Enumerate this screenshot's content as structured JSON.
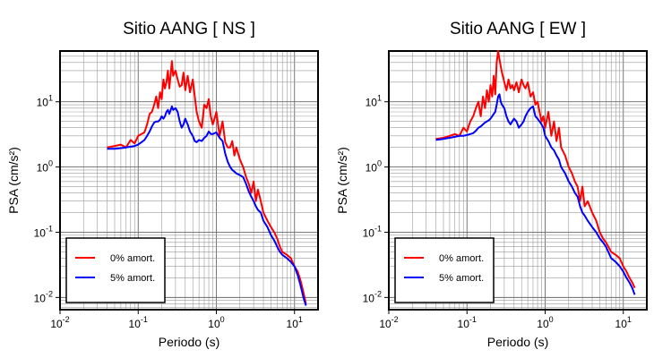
{
  "chart_data": [
    {
      "type": "line",
      "title": "Sitio AANG [ NS ]",
      "xlabel": "Periodo (s)",
      "ylabel": "PSA (cm/s²)",
      "xscale": "log",
      "yscale": "log",
      "xlim": [
        0.01,
        20
      ],
      "ylim": [
        0.0065,
        60
      ],
      "xticks": [
        0.01,
        0.1,
        1,
        10
      ],
      "yticks": [
        0.01,
        0.1,
        1,
        10
      ],
      "grid": true,
      "legend_position": "bottom-left",
      "series": [
        {
          "name": "0% amort.",
          "color": "#ff0000",
          "x": [
            0.04,
            0.05,
            0.06,
            0.07,
            0.08,
            0.09,
            0.1,
            0.11,
            0.12,
            0.13,
            0.14,
            0.15,
            0.16,
            0.17,
            0.18,
            0.19,
            0.2,
            0.21,
            0.22,
            0.23,
            0.24,
            0.25,
            0.27,
            0.28,
            0.3,
            0.32,
            0.34,
            0.36,
            0.38,
            0.4,
            0.43,
            0.46,
            0.5,
            0.53,
            0.56,
            0.6,
            0.65,
            0.7,
            0.75,
            0.8,
            0.85,
            0.9,
            0.95,
            1.0,
            1.1,
            1.2,
            1.3,
            1.4,
            1.5,
            1.6,
            1.7,
            1.8,
            2.0,
            2.2,
            2.4,
            2.6,
            2.8,
            3.0,
            3.2,
            3.4,
            3.7,
            4.0,
            4.5,
            5.0,
            5.5,
            6.0,
            6.5,
            7.0,
            8.0,
            9.0,
            10.0,
            11.0,
            12.0,
            13.0,
            14.0
          ],
          "y": [
            2.0,
            2.1,
            2.2,
            2.0,
            2.6,
            2.3,
            3.0,
            3.2,
            3.4,
            4.5,
            6.5,
            7.0,
            9.0,
            12.0,
            8.0,
            14.0,
            11.0,
            22.0,
            16.0,
            20.0,
            30.0,
            16.0,
            42.0,
            25.0,
            30.0,
            22.0,
            17.0,
            18.0,
            28.0,
            15.0,
            25.0,
            14.0,
            22.0,
            12.0,
            7.0,
            5.0,
            4.0,
            9.0,
            8.0,
            11.0,
            6.0,
            4.5,
            5.5,
            7.0,
            3.0,
            5.0,
            2.4,
            2.0,
            2.0,
            2.5,
            1.5,
            2.0,
            1.3,
            1.0,
            0.7,
            0.55,
            0.4,
            0.6,
            0.3,
            0.45,
            0.3,
            0.2,
            0.15,
            0.12,
            0.1,
            0.08,
            0.06,
            0.05,
            0.045,
            0.04,
            0.03,
            0.025,
            0.018,
            0.012,
            0.008
          ]
        },
        {
          "name": "5% amort.",
          "color": "#0000ff",
          "x": [
            0.04,
            0.05,
            0.06,
            0.07,
            0.08,
            0.09,
            0.1,
            0.11,
            0.12,
            0.13,
            0.14,
            0.15,
            0.16,
            0.17,
            0.18,
            0.19,
            0.2,
            0.21,
            0.22,
            0.23,
            0.24,
            0.25,
            0.27,
            0.28,
            0.3,
            0.32,
            0.34,
            0.36,
            0.38,
            0.4,
            0.43,
            0.46,
            0.5,
            0.53,
            0.56,
            0.6,
            0.65,
            0.7,
            0.75,
            0.8,
            0.85,
            0.9,
            0.95,
            1.0,
            1.1,
            1.2,
            1.3,
            1.4,
            1.5,
            1.6,
            1.7,
            1.8,
            2.0,
            2.2,
            2.4,
            2.6,
            2.8,
            3.0,
            3.2,
            3.4,
            3.7,
            4.0,
            4.5,
            5.0,
            5.5,
            6.0,
            6.5,
            7.0,
            8.0,
            9.0,
            10.0,
            11.0,
            12.0,
            13.0,
            14.0
          ],
          "y": [
            1.9,
            1.9,
            1.95,
            2.0,
            2.05,
            2.1,
            2.2,
            2.4,
            2.6,
            3.0,
            3.5,
            4.2,
            4.8,
            5.0,
            5.0,
            5.3,
            6.0,
            5.5,
            6.0,
            7.0,
            7.5,
            6.5,
            8.5,
            7.5,
            8.0,
            7.0,
            5.0,
            4.0,
            4.5,
            5.5,
            4.5,
            3.5,
            3.0,
            2.5,
            2.4,
            2.6,
            2.5,
            2.8,
            3.0,
            3.5,
            3.2,
            3.2,
            3.3,
            3.4,
            2.8,
            2.5,
            1.6,
            1.2,
            1.0,
            0.9,
            0.85,
            0.8,
            0.75,
            0.7,
            0.55,
            0.42,
            0.35,
            0.3,
            0.25,
            0.22,
            0.2,
            0.15,
            0.12,
            0.09,
            0.075,
            0.06,
            0.05,
            0.045,
            0.04,
            0.035,
            0.03,
            0.022,
            0.015,
            0.01,
            0.0075
          ]
        }
      ]
    },
    {
      "type": "line",
      "title": "Sitio AANG [ EW ]",
      "xlabel": "Periodo (s)",
      "ylabel": "PSA (cm/s²)",
      "xscale": "log",
      "yscale": "log",
      "xlim": [
        0.01,
        20
      ],
      "ylim": [
        0.0065,
        60
      ],
      "xticks": [
        0.01,
        0.1,
        1,
        10
      ],
      "yticks": [
        0.01,
        0.1,
        1,
        10
      ],
      "grid": true,
      "legend_position": "bottom-left",
      "series": [
        {
          "name": "0% amort.",
          "color": "#ff0000",
          "x": [
            0.04,
            0.05,
            0.06,
            0.07,
            0.08,
            0.09,
            0.1,
            0.11,
            0.12,
            0.13,
            0.14,
            0.15,
            0.16,
            0.17,
            0.18,
            0.19,
            0.2,
            0.21,
            0.22,
            0.23,
            0.24,
            0.25,
            0.26,
            0.27,
            0.28,
            0.3,
            0.32,
            0.34,
            0.36,
            0.38,
            0.4,
            0.43,
            0.46,
            0.5,
            0.53,
            0.56,
            0.6,
            0.65,
            0.7,
            0.75,
            0.8,
            0.85,
            0.9,
            0.95,
            1.0,
            1.1,
            1.2,
            1.3,
            1.4,
            1.5,
            1.6,
            1.8,
            2.0,
            2.2,
            2.4,
            2.6,
            2.8,
            3.0,
            3.2,
            3.5,
            4.0,
            4.5,
            5.0,
            5.5,
            6.0,
            7.0,
            8.0,
            9.0,
            10.0,
            11.0,
            12.0,
            13.0,
            14.0
          ],
          "y": [
            2.7,
            2.8,
            3.0,
            3.2,
            3.0,
            4.0,
            3.5,
            5.0,
            6.0,
            8.0,
            10.0,
            6.0,
            12.0,
            8.0,
            15.0,
            10.0,
            18.0,
            12.0,
            25.0,
            13.0,
            40.0,
            60.0,
            45.0,
            35.0,
            28.0,
            20.0,
            15.0,
            22.0,
            16.0,
            18.0,
            15.0,
            20.0,
            14.0,
            22.0,
            18.0,
            16.0,
            20.0,
            12.0,
            14.0,
            9.0,
            10.0,
            7.0,
            5.0,
            6.0,
            4.0,
            7.0,
            3.0,
            5.0,
            2.5,
            4.0,
            2.0,
            1.5,
            1.0,
            0.8,
            0.6,
            0.5,
            0.3,
            0.5,
            0.25,
            0.3,
            0.2,
            0.15,
            0.1,
            0.08,
            0.07,
            0.05,
            0.045,
            0.04,
            0.03,
            0.025,
            0.02,
            0.017,
            0.014
          ]
        },
        {
          "name": "5% amort.",
          "color": "#0000ff",
          "x": [
            0.04,
            0.05,
            0.06,
            0.07,
            0.08,
            0.09,
            0.1,
            0.11,
            0.12,
            0.13,
            0.14,
            0.15,
            0.16,
            0.17,
            0.18,
            0.19,
            0.2,
            0.21,
            0.22,
            0.23,
            0.24,
            0.25,
            0.26,
            0.27,
            0.28,
            0.3,
            0.32,
            0.34,
            0.36,
            0.38,
            0.4,
            0.43,
            0.46,
            0.5,
            0.53,
            0.56,
            0.6,
            0.65,
            0.7,
            0.75,
            0.8,
            0.85,
            0.9,
            0.95,
            1.0,
            1.1,
            1.2,
            1.3,
            1.4,
            1.5,
            1.6,
            1.8,
            2.0,
            2.2,
            2.4,
            2.6,
            2.8,
            3.0,
            3.2,
            3.5,
            4.0,
            4.5,
            5.0,
            5.5,
            6.0,
            7.0,
            8.0,
            9.0,
            10.0,
            11.0,
            12.0,
            13.0,
            14.0
          ],
          "y": [
            2.6,
            2.7,
            2.8,
            2.9,
            3.0,
            3.0,
            3.1,
            3.2,
            3.3,
            3.6,
            4.0,
            4.2,
            4.5,
            4.8,
            5.0,
            5.2,
            5.5,
            6.0,
            6.5,
            7.0,
            9.0,
            12.0,
            13.0,
            10.0,
            9.0,
            8.0,
            6.0,
            5.0,
            4.5,
            5.0,
            5.5,
            5.0,
            4.0,
            4.5,
            5.0,
            6.0,
            7.0,
            8.0,
            8.5,
            6.0,
            5.5,
            5.0,
            4.5,
            4.0,
            3.0,
            2.5,
            2.0,
            1.8,
            1.5,
            1.3,
            1.0,
            0.8,
            0.6,
            0.5,
            0.4,
            0.35,
            0.25,
            0.2,
            0.18,
            0.15,
            0.12,
            0.1,
            0.08,
            0.07,
            0.06,
            0.04,
            0.035,
            0.03,
            0.025,
            0.02,
            0.017,
            0.014,
            0.011
          ]
        }
      ]
    }
  ]
}
